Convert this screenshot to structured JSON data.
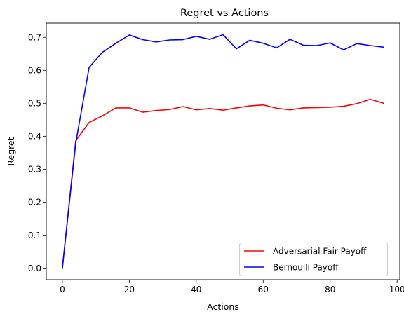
{
  "chart_data": {
    "type": "line",
    "title": "Regret vs Actions",
    "xlabel": "Actions",
    "ylabel": "Regret",
    "xlim": [
      -4.8,
      100.8
    ],
    "ylim": [
      -0.035,
      0.743
    ],
    "x_ticks": [
      0,
      20,
      40,
      60,
      80,
      100
    ],
    "y_ticks": [
      0.0,
      0.1,
      0.2,
      0.3,
      0.4,
      0.5,
      0.6,
      0.7
    ],
    "x_tick_labels": [
      "0",
      "20",
      "40",
      "60",
      "80",
      "100"
    ],
    "y_tick_labels": [
      "0.0",
      "0.1",
      "0.2",
      "0.3",
      "0.4",
      "0.5",
      "0.6",
      "0.7"
    ],
    "grid": false,
    "legend_position": "lower-right",
    "x": [
      0,
      4,
      8,
      12,
      16,
      20,
      24,
      28,
      32,
      36,
      40,
      44,
      48,
      52,
      56,
      60,
      64,
      68,
      72,
      76,
      80,
      84,
      88,
      92,
      96
    ],
    "series": [
      {
        "name": "Adversarial Fair Payoff",
        "color": "#ff0000",
        "values": [
          0.0,
          0.387,
          0.442,
          0.462,
          0.486,
          0.486,
          0.473,
          0.478,
          0.481,
          0.49,
          0.48,
          0.484,
          0.479,
          0.486,
          0.492,
          0.495,
          0.485,
          0.48,
          0.486,
          0.487,
          0.488,
          0.491,
          0.499,
          0.512,
          0.5
        ]
      },
      {
        "name": "Bernoulli Payoff",
        "color": "#0000ff",
        "values": [
          0.0,
          0.38,
          0.609,
          0.655,
          0.682,
          0.707,
          0.693,
          0.686,
          0.692,
          0.693,
          0.703,
          0.694,
          0.708,
          0.665,
          0.691,
          0.682,
          0.668,
          0.694,
          0.676,
          0.675,
          0.683,
          0.662,
          0.681,
          0.675,
          0.67
        ]
      }
    ]
  }
}
